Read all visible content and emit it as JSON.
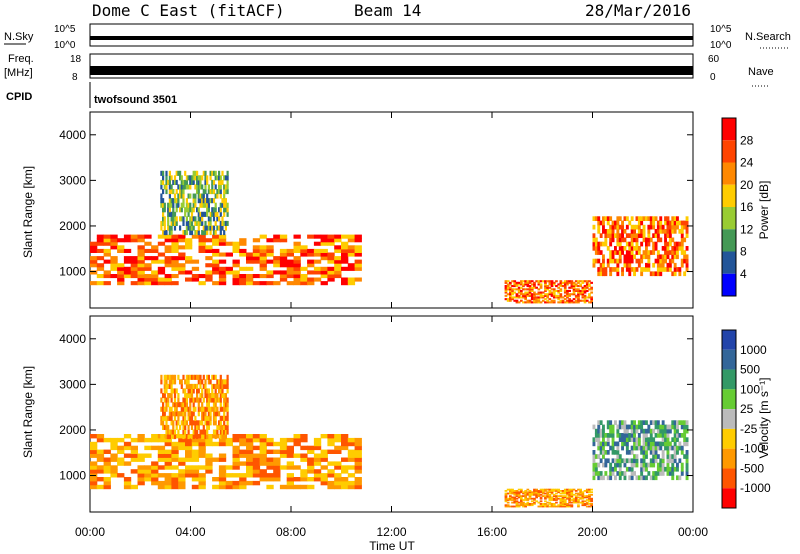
{
  "header": {
    "radar": "Dome C East (fitACF)",
    "beam": "Beam 14",
    "date": "28/Mar/2016"
  },
  "top_panels": {
    "nsky_label": "N.Sky",
    "nsearch_label": "N.Search",
    "nsky_ticks": [
      "10^5",
      "10^0"
    ],
    "nsearch_ticks": [
      "10^5",
      "10^0"
    ],
    "freq_label_1": "Freq.",
    "freq_label_2": "[MHz]",
    "freq_ticks": [
      "18",
      "8"
    ],
    "nave_label": "Nave",
    "nave_ticks": [
      "60",
      "0"
    ],
    "cpid_label": "CPID",
    "cpid_value": "twofsound 3501"
  },
  "colorbars": {
    "power": {
      "label": "Power [dB]",
      "ticks": [
        "28",
        "24",
        "20",
        "16",
        "12",
        "8",
        "4"
      ],
      "colors": [
        "#ff0000",
        "#ff4400",
        "#ff8800",
        "#ffcc00",
        "#99cc33",
        "#449955",
        "#225599",
        "#0000ff"
      ]
    },
    "velocity": {
      "label": "Velocity [m s⁻¹]",
      "ticks": [
        "1000",
        "500",
        "100",
        "25",
        "-25",
        "-100",
        "-500",
        "-1000"
      ],
      "colors": [
        "#2244aa",
        "#336699",
        "#339966",
        "#66cc33",
        "#bbbbbb",
        "#ffcc00",
        "#ff9900",
        "#ff5500",
        "#ff0000"
      ]
    }
  },
  "chart_data": [
    {
      "type": "heatmap",
      "title": "Power",
      "ylabel": "Slant Range [km]",
      "ylim": [
        200,
        4500
      ],
      "yticks": [
        "4000",
        "3000",
        "2000",
        "1000"
      ],
      "xlim": [
        "00:00",
        "24:00"
      ],
      "regions": [
        {
          "t": [
            0.0,
            10.8
          ],
          "r": [
            700,
            1800
          ],
          "level": "high"
        },
        {
          "t": [
            2.8,
            5.5
          ],
          "r": [
            1800,
            3200
          ],
          "level": "mid"
        },
        {
          "t": [
            16.5,
            20.0
          ],
          "r": [
            300,
            800
          ],
          "level": "high"
        },
        {
          "t": [
            20.0,
            23.8
          ],
          "r": [
            900,
            2200
          ],
          "level": "high"
        }
      ]
    },
    {
      "type": "heatmap",
      "title": "Velocity",
      "ylabel": "Slant Range [km]",
      "xlabel": "Time UT",
      "ylim": [
        200,
        4500
      ],
      "yticks": [
        "4000",
        "3000",
        "2000",
        "1000"
      ],
      "xticks": [
        "00:00",
        "04:00",
        "08:00",
        "12:00",
        "16:00",
        "20:00",
        "00:00"
      ],
      "regions": [
        {
          "t": [
            0.0,
            10.8
          ],
          "r": [
            700,
            1900
          ],
          "level": "negative"
        },
        {
          "t": [
            2.8,
            5.5
          ],
          "r": [
            1800,
            3200
          ],
          "level": "negative"
        },
        {
          "t": [
            16.5,
            20.0
          ],
          "r": [
            300,
            700
          ],
          "level": "negative"
        },
        {
          "t": [
            20.0,
            23.8
          ],
          "r": [
            900,
            2200
          ],
          "level": "positive"
        }
      ]
    }
  ]
}
